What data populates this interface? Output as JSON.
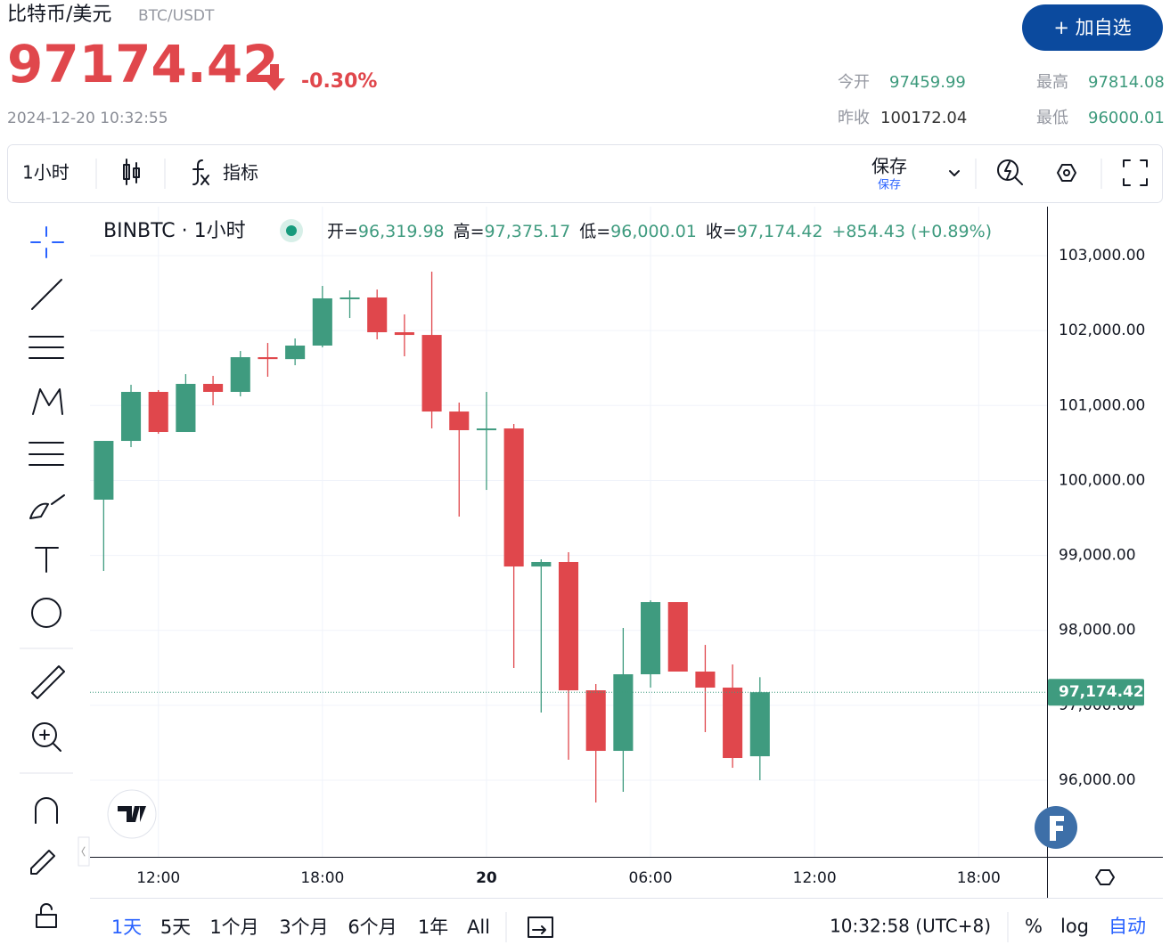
{
  "header": {
    "title": "比特币/美元",
    "symbol": "BTC/USDT",
    "price": "97174.42",
    "change": "-0.30%",
    "datetime": "2024-12-20 10:32:55",
    "button": "+ 加自选",
    "stats": [
      {
        "label": "今开",
        "value": "97459.99",
        "color": "#3d9a7c"
      },
      {
        "label": "最高",
        "value": "97814.08",
        "color": "#3d9a7c"
      },
      {
        "label": "昨收",
        "value": "100172.04",
        "color": "#333333"
      },
      {
        "label": "最低",
        "value": "96000.01",
        "color": "#3d9a7c"
      }
    ]
  },
  "toolbar": {
    "interval": "1小时",
    "indicators": "指标",
    "save": "保存",
    "save_sub": "保存"
  },
  "legend": {
    "symbol": "BINBTC · 1小时",
    "items": [
      {
        "label": "开=",
        "value": "96,319.98"
      },
      {
        "label": "高=",
        "value": "97,375.17"
      },
      {
        "label": "低=",
        "value": "96,000.01"
      },
      {
        "label": "收=",
        "value": "97,174.42"
      }
    ],
    "change": "+854.43 (+0.89%)"
  },
  "chart_data": {
    "type": "candlestick",
    "up_color": "#3f9b7f",
    "down_color": "#e0474c",
    "grid": true,
    "x": [
      -2,
      -1,
      0,
      1,
      2,
      3,
      4,
      5,
      6,
      7,
      8,
      9,
      10,
      11,
      12,
      13,
      14,
      15,
      16,
      17,
      18,
      19,
      20,
      21,
      22
    ],
    "open": [
      99744,
      100528,
      101182,
      100647,
      101289,
      101182,
      101645,
      101620,
      101800,
      102430,
      102442,
      101978,
      101942,
      100920,
      100671,
      100694,
      98852,
      98912,
      97200,
      96392,
      97414,
      98377,
      97450,
      97236,
      96319.98
    ],
    "high": [
      100528,
      101277,
      101206,
      101419,
      101396,
      101728,
      101835,
      101895,
      102596,
      102537,
      102548,
      102216,
      102786,
      101039,
      101182,
      100754,
      98947,
      99042,
      97283,
      98032,
      98401,
      98377,
      97806,
      97545,
      97375.17
    ],
    "low": [
      98793,
      100445,
      100623,
      100647,
      101003,
      101122,
      101384,
      101538,
      101776,
      102168,
      101883,
      101657,
      100694,
      99518,
      99874,
      97497,
      96903,
      96273,
      95703,
      95845,
      97236,
      97450,
      96642,
      96166,
      96000.01
    ],
    "close": [
      100528,
      101182,
      100647,
      101289,
      101182,
      101645,
      101620,
      101800,
      102430,
      102442,
      101978,
      101942,
      100920,
      100671,
      100694,
      98852,
      98912,
      97200,
      96392,
      97414,
      98377,
      97450,
      97236,
      96297,
      97174.42
    ],
    "xlim": [
      -2.5,
      32.5
    ],
    "xticks": [
      {
        "value": 0,
        "label": "12:00"
      },
      {
        "value": 6,
        "label": "18:00"
      },
      {
        "value": 12,
        "label": "20"
      },
      {
        "value": 18,
        "label": "06:00"
      },
      {
        "value": 24,
        "label": "12:00"
      },
      {
        "value": 30,
        "label": "18:00"
      }
    ],
    "ylim": [
      94978,
      103654
    ],
    "yticks": [
      {
        "value": 96000,
        "label": "96,000.00"
      },
      {
        "value": 97000,
        "label": "97,000.00"
      },
      {
        "value": 98000,
        "label": "98,000.00"
      },
      {
        "value": 99000,
        "label": "99,000.00"
      },
      {
        "value": 100000,
        "label": "100,000.00"
      },
      {
        "value": 101000,
        "label": "101,000.00"
      },
      {
        "value": 102000,
        "label": "102,000.00"
      },
      {
        "value": 103000,
        "label": "103,000.00"
      }
    ],
    "last_price": {
      "value": 97174.42,
      "label": "97,174.42"
    }
  },
  "bottom": {
    "ranges": [
      "1天",
      "5天",
      "1个月",
      "3个月",
      "6个月",
      "1年",
      "All"
    ],
    "time": "10:32:58 (UTC+8)",
    "percent": "%",
    "log": "log",
    "auto": "自动"
  }
}
